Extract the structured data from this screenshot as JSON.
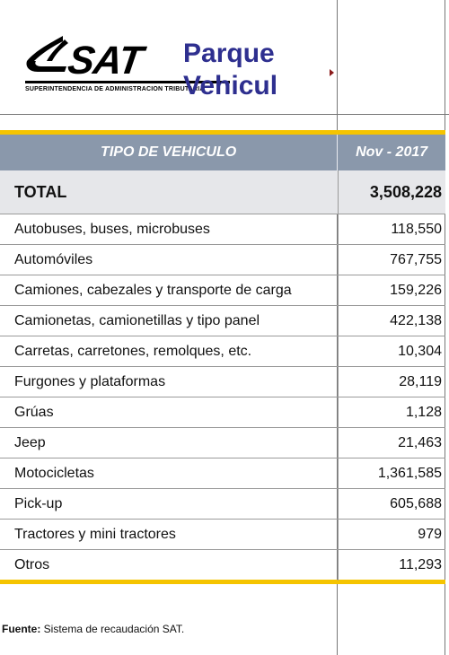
{
  "logo": {
    "sat": "SAT",
    "subtitle": "SUPERINTENDENCIA DE ADMINISTRACION TRIBUTARIA"
  },
  "title": {
    "line1": "Parque",
    "line2": "Vehicul"
  },
  "table": {
    "header": {
      "col1": "TIPO DE VEHICULO",
      "col2": "Nov - 2017"
    },
    "total": {
      "label": "TOTAL",
      "value": "3,508,228"
    },
    "rows": [
      {
        "label": "Autobuses, buses, microbuses",
        "value": "118,550"
      },
      {
        "label": "Automóviles",
        "value": "767,755"
      },
      {
        "label": "Camiones, cabezales y transporte de carga",
        "value": "159,226"
      },
      {
        "label": "Camionetas, camionetillas y tipo panel",
        "value": "422,138"
      },
      {
        "label": "Carretas, carretones, remolques, etc.",
        "value": "10,304"
      },
      {
        "label": "Furgones y plataformas",
        "value": "28,119"
      },
      {
        "label": "Grúas",
        "value": "1,128"
      },
      {
        "label": "Jeep",
        "value": "21,463"
      },
      {
        "label": "Motocicletas",
        "value": "1,361,585"
      },
      {
        "label": "Pick-up",
        "value": "605,688"
      },
      {
        "label": "Tractores y mini tractores",
        "value": "979"
      },
      {
        "label": "Otros",
        "value": "11,293"
      }
    ]
  },
  "footer": {
    "label": "Fuente:",
    "text": " Sistema de recaudación SAT."
  },
  "colors": {
    "title": "#2e2f8f",
    "header_bg": "#8a98ab",
    "accent": "#f5c400"
  }
}
